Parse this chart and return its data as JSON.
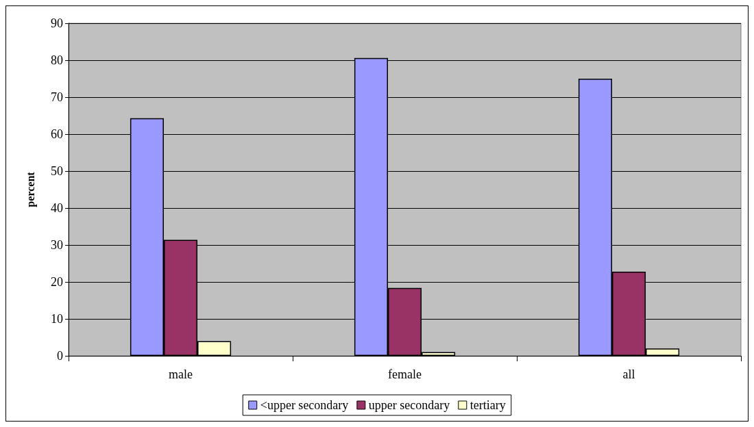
{
  "chart_data": {
    "type": "bar",
    "ylabel": "percent",
    "categories": [
      "male",
      "female",
      "all"
    ],
    "series": [
      {
        "name": "<upper secondary",
        "color": "#9999ff",
        "values": [
          64.3,
          80.6,
          75.0
        ]
      },
      {
        "name": "upper secondary",
        "color": "#993366",
        "values": [
          31.4,
          18.4,
          22.8
        ]
      },
      {
        "name": "tertiary",
        "color": "#ffffcc",
        "values": [
          4.0,
          1.0,
          2.0
        ]
      }
    ],
    "ylim": [
      0,
      90
    ],
    "yticks": [
      0,
      10,
      20,
      30,
      40,
      50,
      60,
      70,
      80,
      90
    ],
    "grid": "y",
    "legend": "bottom"
  }
}
